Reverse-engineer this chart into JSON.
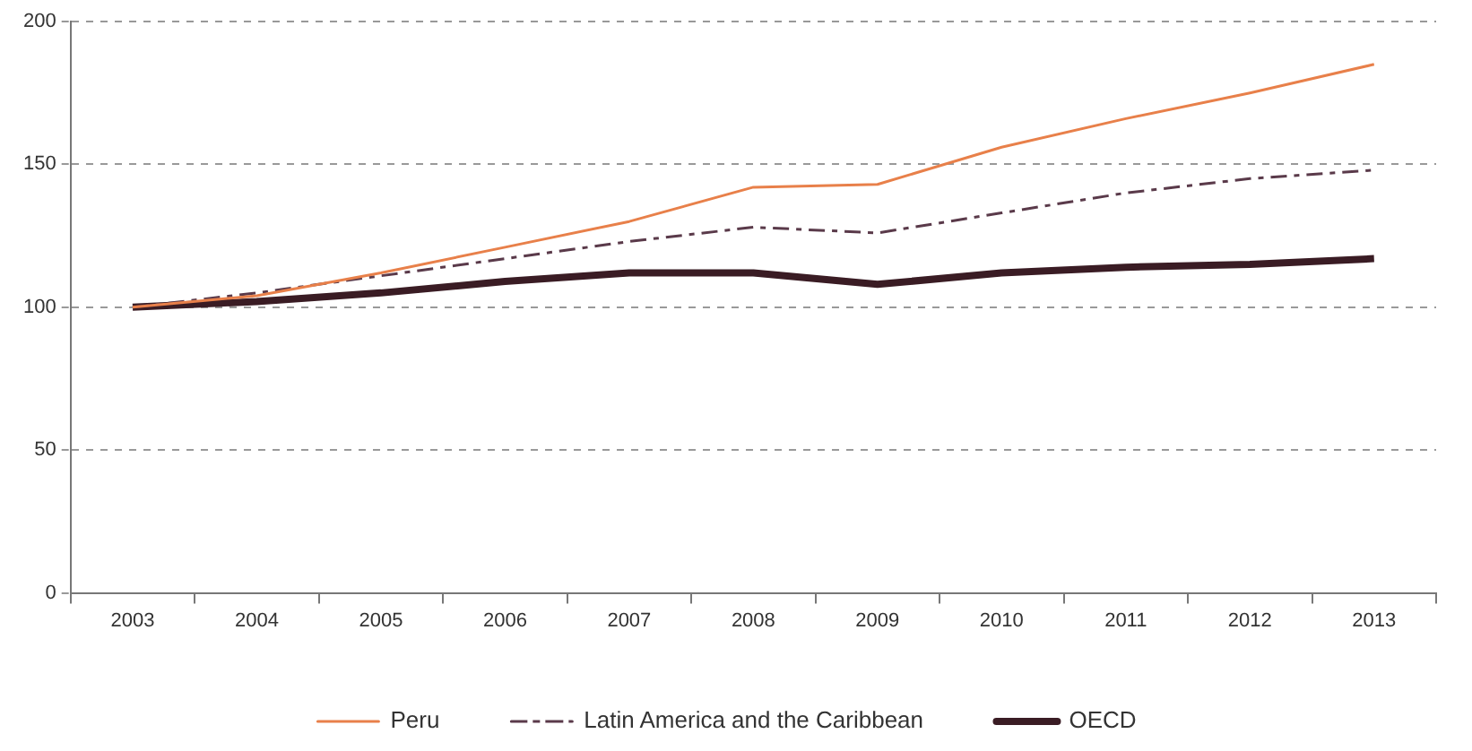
{
  "chart_data": {
    "type": "line",
    "categories": [
      "2003",
      "2004",
      "2005",
      "2006",
      "2007",
      "2008",
      "2009",
      "2010",
      "2011",
      "2012",
      "2013"
    ],
    "series": [
      {
        "name": "Peru",
        "color": "#e8804a",
        "line_style": "solid",
        "values": [
          100,
          104,
          112,
          121,
          130,
          142,
          143,
          156,
          166,
          175,
          185
        ]
      },
      {
        "name": "Latin America and the Caribbean",
        "color": "#5a3a4a",
        "line_style": "dashed",
        "values": [
          100,
          105,
          111,
          117,
          123,
          128,
          126,
          133,
          140,
          145,
          148
        ]
      },
      {
        "name": "OECD",
        "color": "#3a1c24",
        "line_style": "solid",
        "values": [
          100,
          102,
          105,
          109,
          112,
          112,
          108,
          112,
          114,
          115,
          117
        ]
      }
    ],
    "ylim": [
      0,
      200
    ],
    "yticks": [
      0,
      50,
      100,
      150,
      200
    ],
    "grid": "y",
    "legend": "bottom",
    "marker": "none"
  }
}
